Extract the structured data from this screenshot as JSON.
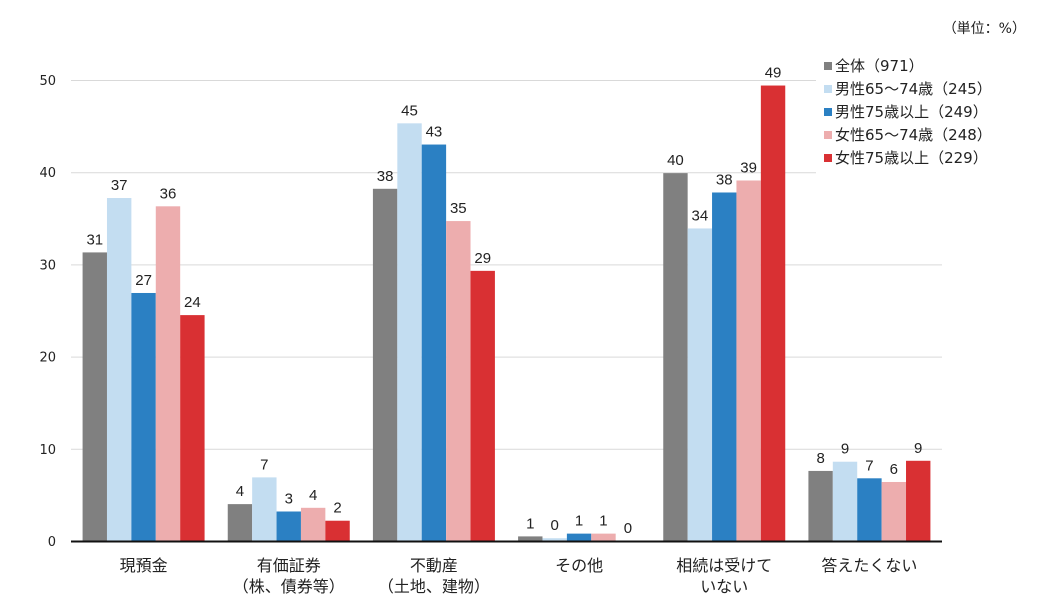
{
  "unit_label": "（単位：%）",
  "chart_data": {
    "type": "bar",
    "title": "",
    "xlabel": "",
    "ylabel": "",
    "unit": "%",
    "ylim": [
      0,
      50
    ],
    "yticks": [
      0,
      10,
      20,
      30,
      40,
      50
    ],
    "grid": true,
    "legend_position": "top-right",
    "categories": [
      [
        "現預金"
      ],
      [
        "有価証券",
        "（株、債券等）"
      ],
      [
        "不動産",
        "（土地、建物）"
      ],
      [
        "その他"
      ],
      [
        "相続は受けて",
        "いない"
      ],
      [
        "答えたくない"
      ]
    ],
    "series": [
      {
        "name": "全体（971）",
        "color": "#808080",
        "values": [
          31.3,
          4.0,
          38.2,
          0.5,
          39.9,
          7.6
        ],
        "labels": [
          "31",
          "4",
          "38",
          "1",
          "40",
          "8"
        ]
      },
      {
        "name": "男性65～74歳（245）",
        "color": "#C3DDF1",
        "values": [
          37.2,
          6.9,
          45.3,
          0.3,
          33.9,
          8.6
        ],
        "labels": [
          "37",
          "7",
          "45",
          "0",
          "34",
          "9"
        ]
      },
      {
        "name": "男性75歳以上（249）",
        "color": "#2B80C3",
        "values": [
          26.9,
          3.2,
          43.0,
          0.8,
          37.8,
          6.8
        ],
        "labels": [
          "27",
          "3",
          "43",
          "1",
          "38",
          "7"
        ]
      },
      {
        "name": "女性65～74歳（248）",
        "color": "#EDADAE",
        "values": [
          36.3,
          3.6,
          34.7,
          0.8,
          39.1,
          6.4
        ],
        "labels": [
          "36",
          "4",
          "35",
          "1",
          "39",
          "6"
        ]
      },
      {
        "name": "女性75歳以上（229）",
        "color": "#D93033",
        "values": [
          24.5,
          2.2,
          29.3,
          0.0,
          49.4,
          8.7
        ],
        "labels": [
          "24",
          "2",
          "29",
          "0",
          "49",
          "9"
        ]
      }
    ]
  }
}
